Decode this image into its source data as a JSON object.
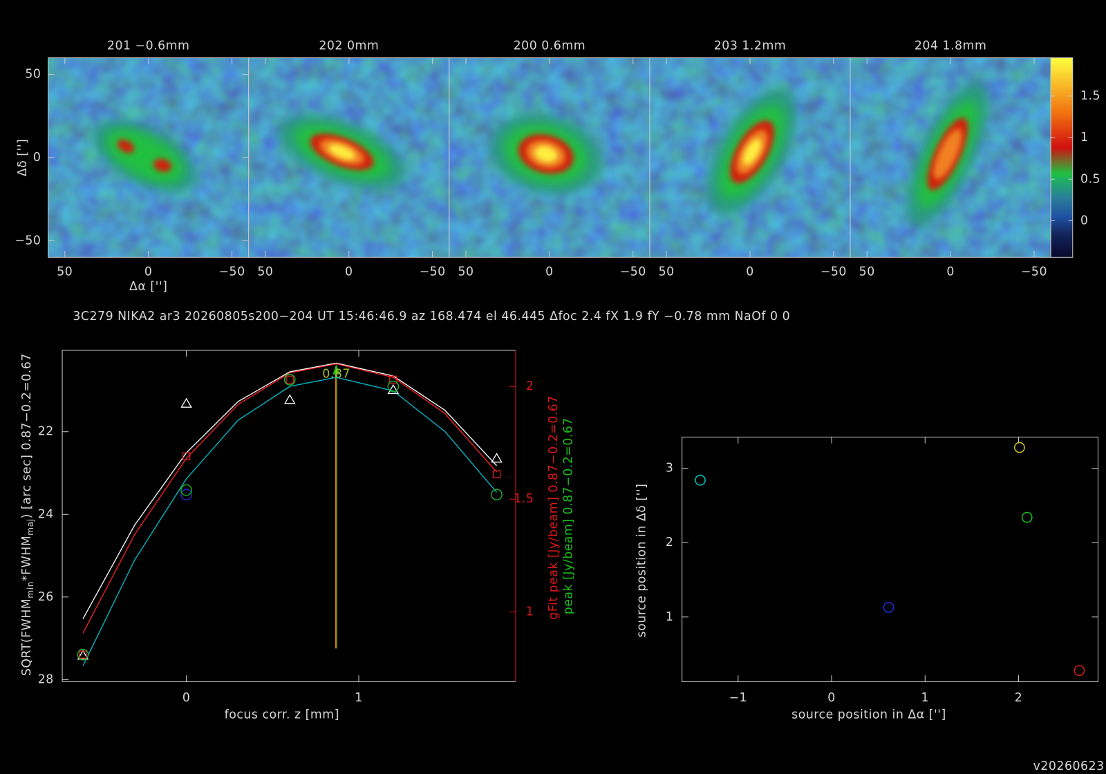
{
  "info": "3C279 NIKA2 ar3 20260805s200−204 UT 15:46:46.9 az 168.474 el 46.445 Δfoc 2.4 fX 1.9 fY −0.78 mm NaOf 0 0",
  "version": "v20260623",
  "chart_data": [
    {
      "type": "image",
      "title": "201 −0.6mm",
      "xlim": [
        60,
        -60
      ],
      "ylim": [
        -60,
        60
      ],
      "xticks": [
        50,
        0,
        {
          "value": -50,
          "label": "−50"
        }
      ],
      "yticks": [
        {
          "value": -50,
          "label": "−50"
        },
        0,
        50
      ],
      "xlabel": "Δα ['']",
      "ylabel": "Δδ ['']"
    },
    {
      "type": "image",
      "title": "202 0mm",
      "xlim": [
        60,
        -60
      ],
      "ylim": [
        -60,
        60
      ],
      "xticks": [
        50,
        0,
        {
          "value": -50,
          "label": "−50"
        }
      ]
    },
    {
      "type": "image",
      "title": "200 0.6mm",
      "xlim": [
        60,
        -60
      ],
      "ylim": [
        -60,
        60
      ],
      "xticks": [
        50,
        0,
        {
          "value": -50,
          "label": "−50"
        }
      ]
    },
    {
      "type": "image",
      "title": "203 1.2mm",
      "xlim": [
        60,
        -60
      ],
      "ylim": [
        -60,
        60
      ],
      "xticks": [
        50,
        0,
        {
          "value": -50,
          "label": "−50"
        }
      ]
    },
    {
      "type": "image",
      "title": "204 1.8mm",
      "xlim": [
        60,
        -60
      ],
      "ylim": [
        -60,
        60
      ],
      "xticks": [
        50,
        0,
        {
          "value": -50,
          "label": "−50"
        }
      ]
    },
    {
      "type": "colorbar",
      "ylim": [
        -0.44,
        1.96
      ],
      "yticks": [
        0,
        0.5,
        1,
        1.5
      ]
    },
    {
      "type": "line",
      "xlim": [
        -0.72,
        1.91
      ],
      "xticks": [
        0,
        1
      ],
      "ylim": [
        28.05,
        20.03
      ],
      "yticks": [
        22,
        24,
        26,
        28
      ],
      "y2lim": [
        0.69,
        2.16
      ],
      "y2ticks": [
        1,
        1.5,
        2
      ],
      "xlabel": "focus corr. z [mm]",
      "ylabel_parts": [
        "SQRT(FWHM",
        "min",
        "*FWHM",
        "maj",
        ") [arc sec] 0.87−0.2=0.67"
      ],
      "y2label": "gFit peak [Jy/beam] 0.87−0.2=0.67",
      "y2label_color": "#e01818",
      "y3label": "peak [Jy/beam] 0.87−0.2=0.67",
      "y3label_color": "#18c018",
      "best_focus": 0.87,
      "best_focus_color": "#a8c020",
      "series": [
        {
          "color": "#ffffff",
          "marker": "line",
          "x": [
            -0.6,
            -0.3,
            0,
            0.3,
            0.6,
            0.87,
            1.2,
            1.5,
            1.8
          ],
          "values": [
            26.53,
            24.26,
            22.51,
            21.27,
            20.55,
            20.34,
            20.65,
            21.48,
            22.82
          ]
        },
        {
          "color": "#ff2020",
          "marker": "line",
          "axis": "y2",
          "x": [
            -0.6,
            -0.3,
            0,
            0.3,
            0.6,
            0.87,
            1.2,
            1.5,
            1.8
          ],
          "values": [
            0.905,
            1.343,
            1.681,
            1.92,
            2.06,
            2.1,
            2.04,
            1.88,
            1.62
          ]
        },
        {
          "color": "#00c0d0",
          "marker": "line",
          "axis": "y2",
          "x": [
            -0.6,
            -0.3,
            0,
            0.3,
            0.6,
            0.87,
            1.2,
            1.5,
            1.8
          ],
          "values": [
            0.76,
            1.23,
            1.59,
            1.85,
            2.0,
            2.04,
            1.98,
            1.8,
            1.53
          ]
        },
        {
          "color": "#ffffff",
          "marker": "triangle",
          "x": [
            -0.6,
            0,
            0.6,
            1.2,
            1.8
          ],
          "values": [
            27.42,
            21.32,
            21.23,
            20.99,
            22.65
          ]
        },
        {
          "color": "#e02020",
          "marker": "square",
          "axis": "y2",
          "x": [
            -0.6,
            0,
            0.6,
            1.2,
            1.8
          ],
          "values": [
            0.81,
            1.69,
            2.03,
            2.03,
            1.61
          ]
        },
        {
          "color": "#2030e0",
          "marker": "circle",
          "axis": "y2",
          "x": [
            -0.6,
            0,
            0.6,
            1.2,
            1.8
          ],
          "values": [
            0.81,
            1.52,
            2.03,
            2.0,
            1.52
          ]
        },
        {
          "color": "#18c018",
          "marker": "circle",
          "axis": "y2",
          "x": [
            -0.6,
            0,
            0.6,
            1.2,
            1.8
          ],
          "values": [
            0.81,
            1.54,
            2.03,
            2.0,
            1.52
          ]
        }
      ]
    },
    {
      "type": "scatter",
      "xlim": [
        -1.6,
        2.85
      ],
      "ylim": [
        0.13,
        3.42
      ],
      "xticks": [
        {
          "value": -1,
          "label": "−1"
        },
        0,
        1,
        2
      ],
      "yticks": [
        1,
        2,
        3
      ],
      "xlabel": "source position in Δα ['']",
      "ylabel": "source position in Δδ ['']",
      "x": [
        -1.405,
        2.01,
        2.09,
        0.61,
        2.65
      ],
      "values": [
        2.84,
        3.28,
        2.34,
        1.13,
        0.28
      ],
      "colors": [
        "#00c0c0",
        "#d0c020",
        "#18c018",
        "#2030e0",
        "#d02010"
      ]
    }
  ]
}
